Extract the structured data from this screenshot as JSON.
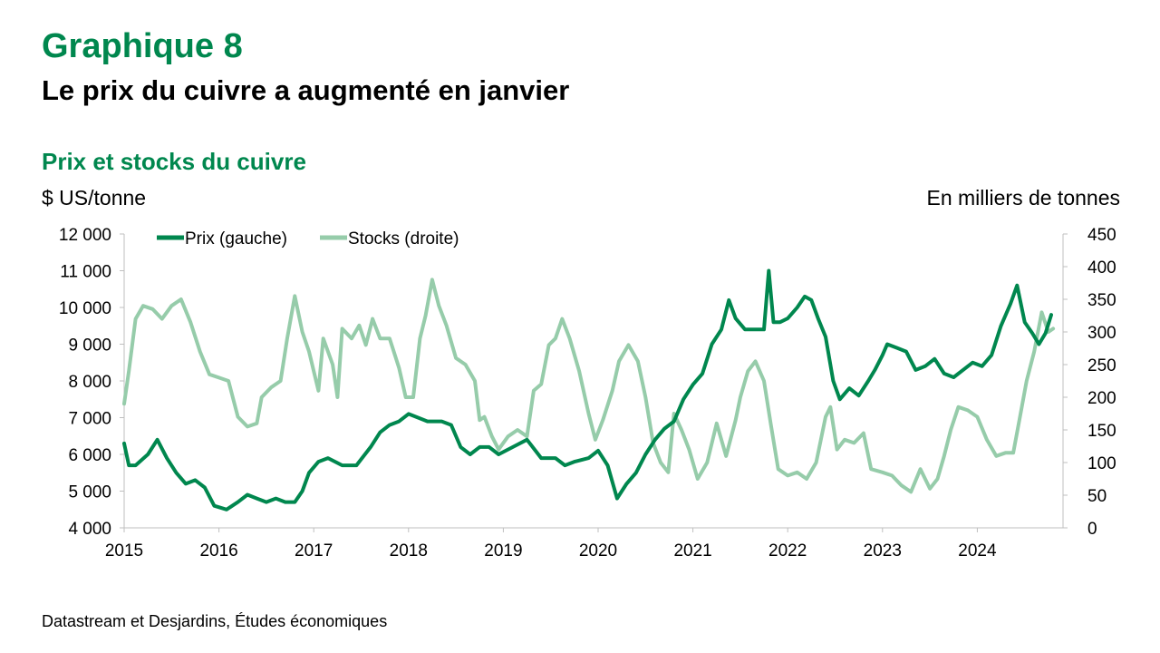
{
  "header": {
    "figure_number": "Graphique 8",
    "headline": "Le prix du cuivre a augmenté en janvier"
  },
  "footer": {
    "source": "Datastream et Desjardins, Études économiques"
  },
  "chart_data": {
    "type": "line",
    "title": "Prix et stocks du cuivre",
    "ylabel_left": "$ US/tonne",
    "ylabel_right": "En milliers de tonnes",
    "ylim_left": [
      4000,
      12000
    ],
    "ylim_right": [
      0,
      450
    ],
    "xlim": [
      2015,
      2024.8
    ],
    "x_ticks": [
      2015,
      2016,
      2017,
      2018,
      2019,
      2020,
      2021,
      2022,
      2023,
      2024
    ],
    "x_tick_labels": [
      "2015",
      "2016",
      "2017",
      "2018",
      "2019",
      "2020",
      "2021",
      "2022",
      "2023",
      "2024"
    ],
    "y_left_ticks": [
      4000,
      5000,
      6000,
      7000,
      8000,
      9000,
      10000,
      11000,
      12000
    ],
    "y_left_tick_labels": [
      "4 000",
      "5 000",
      "6 000",
      "7 000",
      "8 000",
      "9 000",
      "10 000",
      "11 000",
      "12 000"
    ],
    "y_right_ticks": [
      0,
      50,
      100,
      150,
      200,
      250,
      300,
      350,
      400,
      450
    ],
    "y_right_tick_labels": [
      "0",
      "50",
      "100",
      "150",
      "200",
      "250",
      "300",
      "350",
      "400",
      "450"
    ],
    "grid": false,
    "legend_position": "top-left",
    "series": [
      {
        "name": "Prix (gauche)",
        "axis": "left",
        "color": "#00874E",
        "points": [
          [
            2015.0,
            6300
          ],
          [
            2015.05,
            5700
          ],
          [
            2015.12,
            5700
          ],
          [
            2015.25,
            6000
          ],
          [
            2015.35,
            6400
          ],
          [
            2015.45,
            5900
          ],
          [
            2015.55,
            5500
          ],
          [
            2015.65,
            5200
          ],
          [
            2015.75,
            5300
          ],
          [
            2015.85,
            5100
          ],
          [
            2015.95,
            4600
          ],
          [
            2016.08,
            4500
          ],
          [
            2016.2,
            4700
          ],
          [
            2016.3,
            4900
          ],
          [
            2016.4,
            4800
          ],
          [
            2016.5,
            4700
          ],
          [
            2016.6,
            4800
          ],
          [
            2016.7,
            4700
          ],
          [
            2016.8,
            4700
          ],
          [
            2016.88,
            5000
          ],
          [
            2016.95,
            5500
          ],
          [
            2017.05,
            5800
          ],
          [
            2017.15,
            5900
          ],
          [
            2017.3,
            5700
          ],
          [
            2017.45,
            5700
          ],
          [
            2017.6,
            6200
          ],
          [
            2017.7,
            6600
          ],
          [
            2017.8,
            6800
          ],
          [
            2017.9,
            6900
          ],
          [
            2018.0,
            7100
          ],
          [
            2018.1,
            7000
          ],
          [
            2018.2,
            6900
          ],
          [
            2018.35,
            6900
          ],
          [
            2018.45,
            6800
          ],
          [
            2018.55,
            6200
          ],
          [
            2018.65,
            6000
          ],
          [
            2018.75,
            6200
          ],
          [
            2018.85,
            6200
          ],
          [
            2018.95,
            6000
          ],
          [
            2019.1,
            6200
          ],
          [
            2019.25,
            6400
          ],
          [
            2019.4,
            5900
          ],
          [
            2019.55,
            5900
          ],
          [
            2019.65,
            5700
          ],
          [
            2019.75,
            5800
          ],
          [
            2019.9,
            5900
          ],
          [
            2020.0,
            6100
          ],
          [
            2020.1,
            5700
          ],
          [
            2020.2,
            4800
          ],
          [
            2020.3,
            5200
          ],
          [
            2020.4,
            5500
          ],
          [
            2020.5,
            6000
          ],
          [
            2020.6,
            6400
          ],
          [
            2020.7,
            6700
          ],
          [
            2020.8,
            6900
          ],
          [
            2020.9,
            7500
          ],
          [
            2021.0,
            7900
          ],
          [
            2021.1,
            8200
          ],
          [
            2021.2,
            9000
          ],
          [
            2021.3,
            9400
          ],
          [
            2021.38,
            10200
          ],
          [
            2021.45,
            9700
          ],
          [
            2021.55,
            9400
          ],
          [
            2021.65,
            9400
          ],
          [
            2021.75,
            9400
          ],
          [
            2021.8,
            11000
          ],
          [
            2021.85,
            9600
          ],
          [
            2021.92,
            9600
          ],
          [
            2022.0,
            9700
          ],
          [
            2022.1,
            10000
          ],
          [
            2022.18,
            10300
          ],
          [
            2022.25,
            10200
          ],
          [
            2022.32,
            9700
          ],
          [
            2022.4,
            9200
          ],
          [
            2022.48,
            8000
          ],
          [
            2022.55,
            7500
          ],
          [
            2022.65,
            7800
          ],
          [
            2022.75,
            7600
          ],
          [
            2022.85,
            8000
          ],
          [
            2022.92,
            8300
          ],
          [
            2023.0,
            8700
          ],
          [
            2023.05,
            9000
          ],
          [
            2023.15,
            8900
          ],
          [
            2023.25,
            8800
          ],
          [
            2023.35,
            8300
          ],
          [
            2023.45,
            8400
          ],
          [
            2023.55,
            8600
          ],
          [
            2023.65,
            8200
          ],
          [
            2023.75,
            8100
          ],
          [
            2023.85,
            8300
          ],
          [
            2023.95,
            8500
          ],
          [
            2024.05,
            8400
          ],
          [
            2024.15,
            8700
          ],
          [
            2024.25,
            9500
          ],
          [
            2024.35,
            10100
          ],
          [
            2024.42,
            10600
          ],
          [
            2024.5,
            9600
          ],
          [
            2024.58,
            9300
          ],
          [
            2024.65,
            9000
          ],
          [
            2024.72,
            9300
          ],
          [
            2024.78,
            9800
          ]
        ]
      },
      {
        "name": "Stocks (droite)",
        "axis": "right",
        "color": "#96CCAA",
        "points": [
          [
            2015.0,
            190
          ],
          [
            2015.05,
            240
          ],
          [
            2015.12,
            320
          ],
          [
            2015.2,
            340
          ],
          [
            2015.3,
            335
          ],
          [
            2015.4,
            320
          ],
          [
            2015.5,
            340
          ],
          [
            2015.6,
            350
          ],
          [
            2015.7,
            315
          ],
          [
            2015.8,
            270
          ],
          [
            2015.9,
            235
          ],
          [
            2016.0,
            230
          ],
          [
            2016.1,
            225
          ],
          [
            2016.2,
            170
          ],
          [
            2016.3,
            155
          ],
          [
            2016.4,
            160
          ],
          [
            2016.45,
            200
          ],
          [
            2016.55,
            215
          ],
          [
            2016.65,
            225
          ],
          [
            2016.72,
            290
          ],
          [
            2016.8,
            355
          ],
          [
            2016.88,
            300
          ],
          [
            2016.95,
            270
          ],
          [
            2017.05,
            210
          ],
          [
            2017.1,
            290
          ],
          [
            2017.2,
            250
          ],
          [
            2017.25,
            200
          ],
          [
            2017.3,
            305
          ],
          [
            2017.4,
            290
          ],
          [
            2017.48,
            310
          ],
          [
            2017.55,
            280
          ],
          [
            2017.62,
            320
          ],
          [
            2017.7,
            290
          ],
          [
            2017.8,
            290
          ],
          [
            2017.9,
            245
          ],
          [
            2017.97,
            200
          ],
          [
            2018.05,
            200
          ],
          [
            2018.12,
            290
          ],
          [
            2018.18,
            325
          ],
          [
            2018.25,
            380
          ],
          [
            2018.32,
            340
          ],
          [
            2018.4,
            310
          ],
          [
            2018.5,
            260
          ],
          [
            2018.6,
            250
          ],
          [
            2018.7,
            225
          ],
          [
            2018.75,
            165
          ],
          [
            2018.8,
            170
          ],
          [
            2018.88,
            140
          ],
          [
            2018.95,
            120
          ],
          [
            2019.05,
            140
          ],
          [
            2019.15,
            150
          ],
          [
            2019.25,
            140
          ],
          [
            2019.32,
            210
          ],
          [
            2019.4,
            220
          ],
          [
            2019.48,
            280
          ],
          [
            2019.55,
            290
          ],
          [
            2019.62,
            320
          ],
          [
            2019.7,
            290
          ],
          [
            2019.8,
            240
          ],
          [
            2019.9,
            175
          ],
          [
            2019.97,
            135
          ],
          [
            2020.05,
            165
          ],
          [
            2020.15,
            210
          ],
          [
            2020.22,
            255
          ],
          [
            2020.32,
            280
          ],
          [
            2020.42,
            255
          ],
          [
            2020.5,
            200
          ],
          [
            2020.58,
            130
          ],
          [
            2020.66,
            100
          ],
          [
            2020.74,
            85
          ],
          [
            2020.8,
            175
          ],
          [
            2020.88,
            150
          ],
          [
            2020.96,
            120
          ],
          [
            2021.05,
            75
          ],
          [
            2021.15,
            100
          ],
          [
            2021.25,
            160
          ],
          [
            2021.35,
            110
          ],
          [
            2021.45,
            165
          ],
          [
            2021.5,
            200
          ],
          [
            2021.58,
            240
          ],
          [
            2021.66,
            255
          ],
          [
            2021.75,
            225
          ],
          [
            2021.82,
            160
          ],
          [
            2021.9,
            90
          ],
          [
            2022.0,
            80
          ],
          [
            2022.1,
            85
          ],
          [
            2022.2,
            75
          ],
          [
            2022.3,
            100
          ],
          [
            2022.4,
            170
          ],
          [
            2022.45,
            185
          ],
          [
            2022.52,
            120
          ],
          [
            2022.6,
            135
          ],
          [
            2022.7,
            130
          ],
          [
            2022.8,
            145
          ],
          [
            2022.88,
            90
          ],
          [
            2023.0,
            85
          ],
          [
            2023.1,
            80
          ],
          [
            2023.2,
            65
          ],
          [
            2023.3,
            55
          ],
          [
            2023.4,
            90
          ],
          [
            2023.5,
            60
          ],
          [
            2023.58,
            75
          ],
          [
            2023.65,
            110
          ],
          [
            2023.72,
            150
          ],
          [
            2023.8,
            185
          ],
          [
            2023.9,
            180
          ],
          [
            2024.0,
            170
          ],
          [
            2024.1,
            135
          ],
          [
            2024.2,
            110
          ],
          [
            2024.3,
            115
          ],
          [
            2024.38,
            115
          ],
          [
            2024.45,
            170
          ],
          [
            2024.52,
            225
          ],
          [
            2024.6,
            270
          ],
          [
            2024.68,
            330
          ],
          [
            2024.75,
            300
          ],
          [
            2024.8,
            305
          ]
        ]
      }
    ]
  }
}
